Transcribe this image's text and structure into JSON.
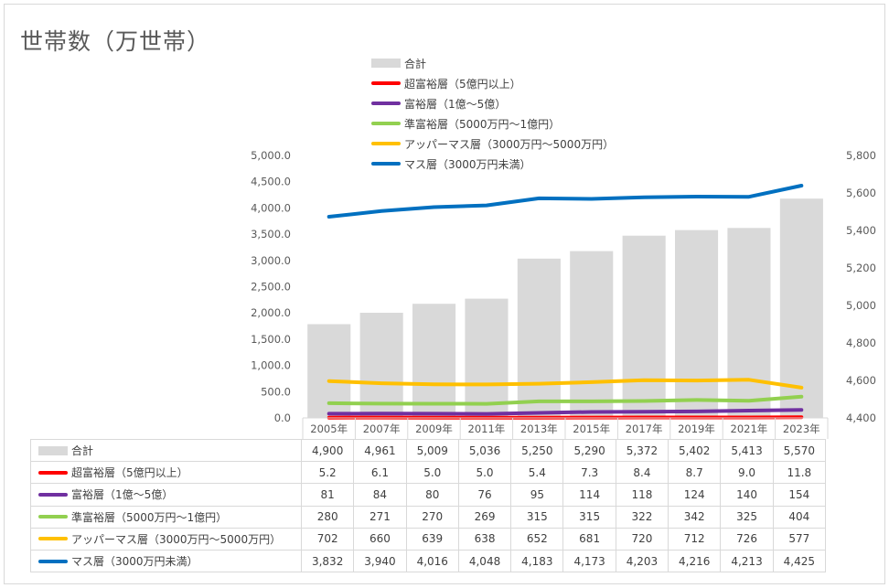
{
  "title": "世帯数（万世帯）",
  "colors": {
    "total": "#d9d9d9",
    "ultra_wealthy": "#ff0000",
    "wealthy": "#7030a0",
    "semi_wealthy": "#92d050",
    "upper_mass": "#ffc000",
    "mass": "#0070c0"
  },
  "chart_data": {
    "type": "bar",
    "categories": [
      "2005年",
      "2007年",
      "2009年",
      "2011年",
      "2013年",
      "2015年",
      "2017年",
      "2019年",
      "2021年",
      "2023年"
    ],
    "bar_series": {
      "name": "合計",
      "values": [
        4900,
        4961,
        5009,
        5036,
        5250,
        5290,
        5372,
        5402,
        5413,
        5570
      ],
      "axis": "right"
    },
    "line_series": [
      {
        "name": "超富裕層（5億円以上）",
        "values": [
          5.2,
          6.1,
          5.0,
          5.0,
          5.4,
          7.3,
          8.4,
          8.7,
          9.0,
          11.8
        ],
        "axis": "left"
      },
      {
        "name": "富裕層（1億～5億）",
        "values": [
          81,
          84,
          80,
          76,
          95,
          114,
          118,
          124,
          140,
          154
        ],
        "axis": "left"
      },
      {
        "name": "準富裕層（5000万円～1億円）",
        "values": [
          280,
          271,
          270,
          269,
          315,
          315,
          322,
          342,
          325,
          404
        ],
        "axis": "left"
      },
      {
        "name": "アッパーマス層（3000万円～5000万円）",
        "values": [
          702,
          660,
          639,
          638,
          652,
          681,
          720,
          712,
          726,
          577
        ],
        "axis": "left"
      },
      {
        "name": "マス層（3000万円未満）",
        "values": [
          3832,
          3940,
          4016,
          4048,
          4183,
          4173,
          4203,
          4216,
          4213,
          4425
        ],
        "axis": "left"
      }
    ],
    "left_axis": {
      "min": 0,
      "max": 5000,
      "step": 500,
      "ticks": [
        "0.0",
        "500.0",
        "1,000.0",
        "1,500.0",
        "2,000.0",
        "2,500.0",
        "3,000.0",
        "3,500.0",
        "4,000.0",
        "4,500.0",
        "5,000.0"
      ]
    },
    "right_axis": {
      "min": 4400,
      "max": 5800,
      "step": 200,
      "ticks": [
        "4,400",
        "4,600",
        "4,800",
        "5,000",
        "5,200",
        "5,400",
        "5,600",
        "5,800"
      ]
    },
    "legend_position": "top",
    "grid": false
  },
  "legend": [
    {
      "label": "合計",
      "kind": "bar"
    },
    {
      "label": "超富裕層（5億円以上）",
      "kind": "line"
    },
    {
      "label": "富裕層（1億～5億）",
      "kind": "line"
    },
    {
      "label": "準富裕層（5000万円～1億円）",
      "kind": "line"
    },
    {
      "label": "アッパーマス層（3000万円～5000万円）",
      "kind": "line"
    },
    {
      "label": "マス層（3000万円未満）",
      "kind": "line"
    }
  ],
  "table": {
    "rows": [
      {
        "label": "合計",
        "kind": "bar",
        "values": [
          "4,900",
          "4,961",
          "5,009",
          "5,036",
          "5,250",
          "5,290",
          "5,372",
          "5,402",
          "5,413",
          "5,570"
        ]
      },
      {
        "label": "超富裕層（5億円以上）",
        "kind": "line",
        "values": [
          "5.2",
          "6.1",
          "5.0",
          "5.0",
          "5.4",
          "7.3",
          "8.4",
          "8.7",
          "9.0",
          "11.8"
        ]
      },
      {
        "label": "富裕層（1億～5億）",
        "kind": "line",
        "values": [
          "81",
          "84",
          "80",
          "76",
          "95",
          "114",
          "118",
          "124",
          "140",
          "154"
        ]
      },
      {
        "label": "準富裕層（5000万円～1億円）",
        "kind": "line",
        "values": [
          "280",
          "271",
          "270",
          "269",
          "315",
          "315",
          "322",
          "342",
          "325",
          "404"
        ]
      },
      {
        "label": "アッパーマス層（3000万円～5000万円）",
        "kind": "line",
        "values": [
          "702",
          "660",
          "639",
          "638",
          "652",
          "681",
          "720",
          "712",
          "726",
          "577"
        ]
      },
      {
        "label": "マス層（3000万円未満）",
        "kind": "line",
        "values": [
          "3,832",
          "3,940",
          "4,016",
          "4,048",
          "4,183",
          "4,173",
          "4,203",
          "4,216",
          "4,213",
          "4,425"
        ]
      }
    ]
  }
}
